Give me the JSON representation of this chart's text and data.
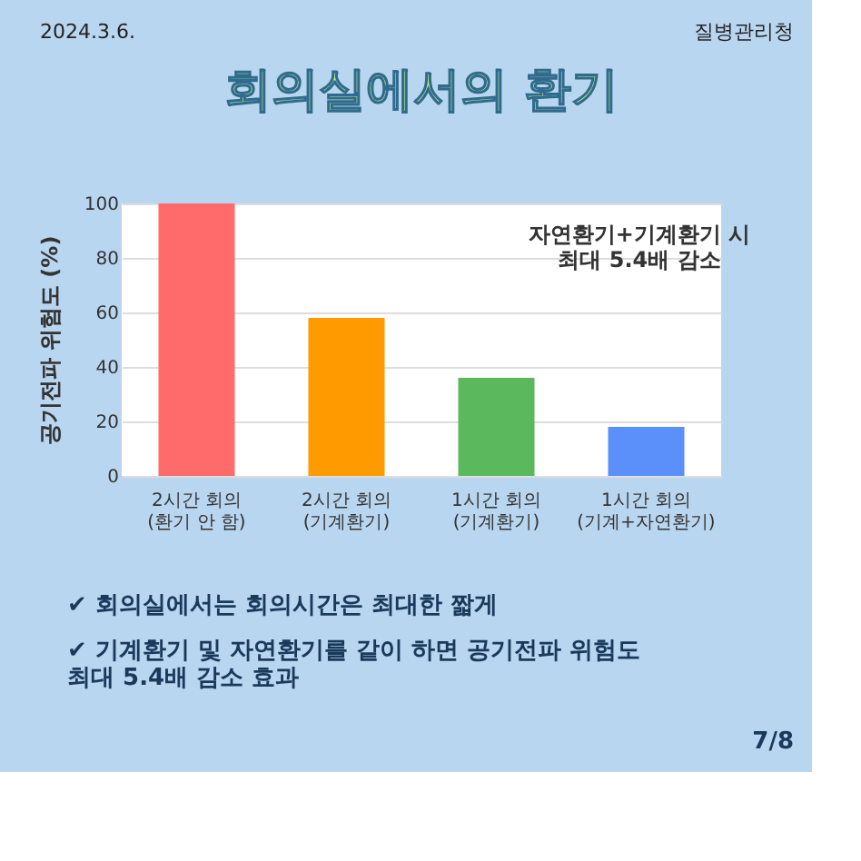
{
  "chart_data": {
    "type": "bar",
    "title": "회의실에서의 환기",
    "ylabel": "공기전파 위험도 (%)",
    "categories": [
      "2시간 회의\n(환기 안 함)",
      "2시간 회의\n(기계환기)",
      "1시간 회의\n(기계환기)",
      "1시간 회의\n(기계+자연환기)"
    ],
    "values": [
      100,
      58,
      36,
      18
    ],
    "colors": [
      "#ff6b6b",
      "#ff9a00",
      "#5cb85c",
      "#5b8ff9"
    ],
    "ylim": [
      0,
      100
    ],
    "yticks": [
      0,
      20,
      40,
      60,
      80,
      100
    ],
    "grid": "y",
    "annotations": [
      "2024.3.6.",
      "질병관리청",
      "자연환기+기계환기 시\n최대 5.4배 감소",
      "✔ 회의실에서는 회의시간은 최대한 짧게",
      "✔ 기계환기 및 자연환기를 같이 하면 공기전파 위험도\n    최대 5.4배 감소 효과",
      "7/8"
    ]
  }
}
